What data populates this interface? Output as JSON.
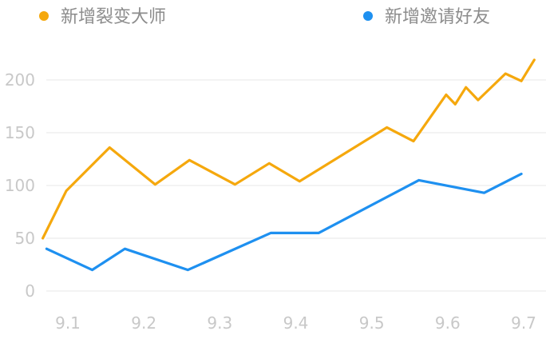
{
  "chart_data": {
    "type": "line",
    "title": "",
    "xlabel": "",
    "ylabel": "",
    "x_ticks": [
      "9.1",
      "9.2",
      "9.3",
      "9.4",
      "9.5",
      "9.6",
      "9.7"
    ],
    "xlim": [
      9.06,
      9.72
    ],
    "ylim": [
      0,
      230
    ],
    "y_ticks": [
      0,
      50,
      100,
      150,
      200
    ],
    "grid": true,
    "legend_position": "top",
    "series": [
      {
        "name": "新增裂变大师",
        "color": "#F5A80D",
        "points": [
          {
            "x": 9.067,
            "y": 50
          },
          {
            "x": 9.098,
            "y": 95
          },
          {
            "x": 9.155,
            "y": 136
          },
          {
            "x": 9.215,
            "y": 101
          },
          {
            "x": 9.26,
            "y": 124
          },
          {
            "x": 9.32,
            "y": 101
          },
          {
            "x": 9.365,
            "y": 121
          },
          {
            "x": 9.405,
            "y": 104
          },
          {
            "x": 9.52,
            "y": 155
          },
          {
            "x": 9.555,
            "y": 142
          },
          {
            "x": 9.598,
            "y": 186
          },
          {
            "x": 9.61,
            "y": 177
          },
          {
            "x": 9.624,
            "y": 193
          },
          {
            "x": 9.64,
            "y": 181
          },
          {
            "x": 9.676,
            "y": 206
          },
          {
            "x": 9.697,
            "y": 199
          },
          {
            "x": 9.714,
            "y": 219
          }
        ]
      },
      {
        "name": "新增邀请好友",
        "color": "#1E90F0",
        "points": [
          {
            "x": 9.072,
            "y": 40
          },
          {
            "x": 9.132,
            "y": 20
          },
          {
            "x": 9.175,
            "y": 40
          },
          {
            "x": 9.258,
            "y": 20
          },
          {
            "x": 9.367,
            "y": 55
          },
          {
            "x": 9.43,
            "y": 55
          },
          {
            "x": 9.562,
            "y": 105
          },
          {
            "x": 9.648,
            "y": 93
          },
          {
            "x": 9.697,
            "y": 111
          }
        ]
      }
    ]
  }
}
